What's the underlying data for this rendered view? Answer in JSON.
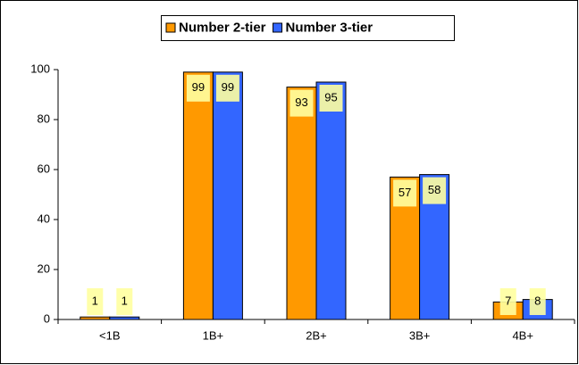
{
  "chart_data": {
    "type": "bar",
    "categories": [
      "<1B",
      "1B+",
      "2B+",
      "3B+",
      "4B+"
    ],
    "series": [
      {
        "name": "Number 2-tier",
        "color": "#ff9900",
        "values": [
          1,
          99,
          93,
          57,
          7
        ]
      },
      {
        "name": "Number 3-tier",
        "color": "#3366ff",
        "values": [
          1,
          99,
          95,
          58,
          8
        ]
      }
    ],
    "ylim": [
      0,
      100
    ],
    "yticks": [
      0,
      20,
      40,
      60,
      80,
      100
    ],
    "grid": false,
    "legend": "top"
  }
}
